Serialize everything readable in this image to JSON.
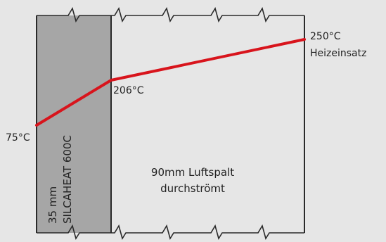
{
  "diagram": {
    "colors": {
      "background": "#e6e6e6",
      "insulation_fill": "#a6a6a6",
      "outline": "#2a2a2a",
      "temperature_line": "#d8141c",
      "text": "#222222"
    },
    "insulation": {
      "thickness_label": "35 mm",
      "material_label": "SILCAHEAT 600C"
    },
    "air_gap": {
      "line1": "90mm Luftspalt",
      "line2": "durchströmt"
    },
    "temperatures": {
      "outer": "75°C",
      "interface": "206°C",
      "heater": "250°C",
      "heater_label": "Heizeinsatz"
    }
  }
}
